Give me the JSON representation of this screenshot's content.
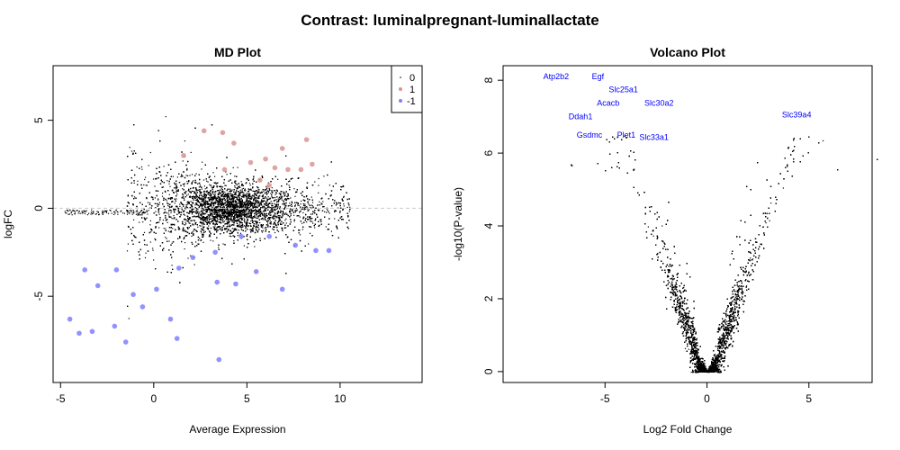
{
  "title": "Contrast: luminalpregnant-luminallactate",
  "chart_data": [
    {
      "type": "scatter",
      "title": "MD Plot",
      "xlabel": "Average Expression",
      "ylabel": "logFC",
      "xlim": [
        -5.4,
        14.4
      ],
      "ylim": [
        -9.9,
        8.1
      ],
      "xticks": [
        -5,
        0,
        5,
        10
      ],
      "yticks": [
        -5,
        0,
        5
      ],
      "reference_line": {
        "y": 0,
        "style": "dashed",
        "color": "#cccccc"
      },
      "legend": {
        "placement": "top-right",
        "entries": [
          {
            "label": "0",
            "color": "#000000"
          },
          {
            "label": "1",
            "color": "#d9958f"
          },
          {
            "label": "-1",
            "color": "#7f7fff"
          }
        ]
      },
      "series": [
        {
          "status": "1",
          "color": "#c0504d",
          "points": [
            [
              2.7,
              4.4
            ],
            [
              3.7,
              4.3
            ],
            [
              4.3,
              3.7
            ],
            [
              6.9,
              3.4
            ],
            [
              8.2,
              3.9
            ],
            [
              6.0,
              2.8
            ],
            [
              5.2,
              2.6
            ],
            [
              6.5,
              2.3
            ],
            [
              7.2,
              2.2
            ],
            [
              7.9,
              2.2
            ],
            [
              8.5,
              2.5
            ],
            [
              3.8,
              2.2
            ],
            [
              1.6,
              3.0
            ],
            [
              5.7,
              1.6
            ],
            [
              6.2,
              1.3
            ]
          ]
        },
        {
          "status": "-1",
          "color": "#5b5bff",
          "points": [
            [
              -4.5,
              -6.3
            ],
            [
              -4.0,
              -7.1
            ],
            [
              -3.3,
              -7.0
            ],
            [
              -1.5,
              -7.6
            ],
            [
              1.25,
              -7.4
            ],
            [
              3.5,
              -8.6
            ],
            [
              0.9,
              -6.3
            ],
            [
              -2.1,
              -6.7
            ],
            [
              -3.7,
              -3.5
            ],
            [
              -2.0,
              -3.5
            ],
            [
              -1.1,
              -4.9
            ],
            [
              0.15,
              -4.6
            ],
            [
              1.35,
              -3.4
            ],
            [
              3.4,
              -4.2
            ],
            [
              4.4,
              -4.3
            ],
            [
              6.9,
              -4.6
            ],
            [
              8.7,
              -2.4
            ],
            [
              9.4,
              -2.4
            ],
            [
              7.6,
              -2.1
            ],
            [
              6.2,
              -1.6
            ],
            [
              4.7,
              -1.6
            ],
            [
              3.3,
              -2.5
            ],
            [
              2.1,
              -2.8
            ],
            [
              5.5,
              -3.6
            ],
            [
              -3.0,
              -4.4
            ],
            [
              -0.6,
              -5.6
            ]
          ]
        }
      ]
    },
    {
      "type": "scatter",
      "title": "Volcano Plot",
      "xlabel": "Log2 Fold Change",
      "ylabel": "-log10(P-value)",
      "xlim": [
        -10,
        8.1
      ],
      "ylim": [
        -0.3,
        8.4
      ],
      "xticks": [
        -5,
        0,
        5
      ],
      "yticks": [
        0,
        2,
        4,
        6,
        8
      ],
      "labeled_genes": [
        {
          "gene": "Atp2b2",
          "x": -7.4,
          "y": 8.1
        },
        {
          "gene": "Egf",
          "x": -5.35,
          "y": 8.1
        },
        {
          "gene": "Slc25a1",
          "x": -4.1,
          "y": 7.74
        },
        {
          "gene": "Acacb",
          "x": -4.25,
          "y": 7.37
        },
        {
          "gene": "Slc30a2",
          "x": -3.2,
          "y": 7.37
        },
        {
          "gene": "Ddah1",
          "x": -6.2,
          "y": 7.0
        },
        {
          "gene": "Slc39a4",
          "x": 4.4,
          "y": 7.05
        },
        {
          "gene": "Gsdmc",
          "x": -5.0,
          "y": 6.5
        },
        {
          "gene": "Plet1",
          "x": -4.5,
          "y": 6.5
        },
        {
          "gene": "Slc33a1",
          "x": -2.6,
          "y": 6.43
        }
      ],
      "label_color": "#0000ff"
    }
  ]
}
